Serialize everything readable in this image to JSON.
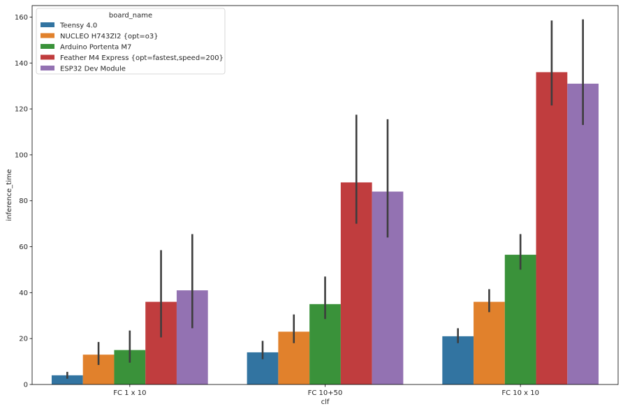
{
  "chart_data": {
    "type": "bar",
    "xlabel": "clf",
    "ylabel": "inference_time",
    "categories": [
      "FC 1 x 10",
      "FC 10+50",
      "FC 10 x 10"
    ],
    "ylim": [
      0,
      165
    ],
    "yticks": [
      0,
      20,
      40,
      60,
      80,
      100,
      120,
      140,
      160
    ],
    "grid": false,
    "legend": {
      "title": "board_name",
      "placement": "top-left"
    },
    "series": [
      {
        "name": "Teensy 4.0",
        "color": "#3274a1",
        "values": [
          4,
          14,
          21
        ],
        "err_low": [
          2.5,
          11,
          18
        ],
        "err_high": [
          5.5,
          19,
          24.5
        ]
      },
      {
        "name": "NUCLEO H743ZI2 {opt=o3}",
        "color": "#e1812c",
        "values": [
          13,
          23,
          36
        ],
        "err_low": [
          8.5,
          18,
          31.5
        ],
        "err_high": [
          18.5,
          30.5,
          41.5
        ]
      },
      {
        "name": "Arduino Portenta M7",
        "color": "#3a923a",
        "values": [
          15,
          35,
          56.5
        ],
        "err_low": [
          9.5,
          28.5,
          50
        ],
        "err_high": [
          23.5,
          47,
          65.5
        ]
      },
      {
        "name": "Feather M4 Express {opt=fastest,speed=200}",
        "color": "#c03d3e",
        "values": [
          36,
          88,
          136
        ],
        "err_low": [
          20.5,
          70,
          121.5
        ],
        "err_high": [
          58.5,
          117.5,
          158.5
        ]
      },
      {
        "name": "ESP32 Dev Module",
        "color": "#9372b2",
        "values": [
          41,
          84,
          131
        ],
        "err_low": [
          24.5,
          64,
          113
        ],
        "err_high": [
          65.5,
          115.5,
          159
        ]
      }
    ]
  }
}
